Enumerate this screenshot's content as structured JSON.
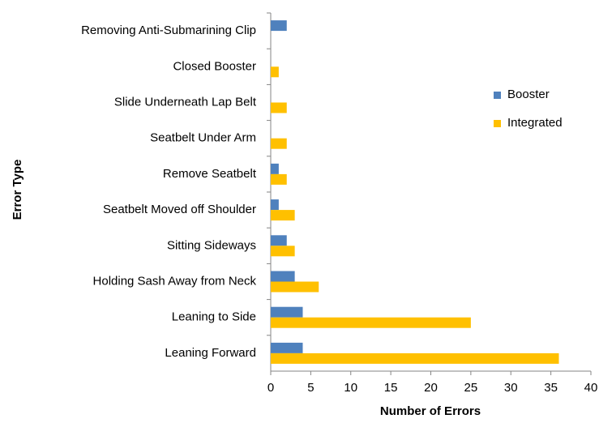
{
  "chart_data": {
    "type": "barh",
    "xlabel": "Number of Errors",
    "ylabel": "Error Type",
    "categories": [
      "Removing Anti-Submarining Clip",
      "Closed Booster",
      "Slide Underneath Lap Belt",
      "Seatbelt Under Arm",
      "Remove Seatbelt",
      "Seatbelt Moved off Shoulder",
      "Sitting Sideways",
      "Holding Sash Away from Neck",
      "Leaning to Side",
      "Leaning Forward"
    ],
    "series": [
      {
        "name": "Booster",
        "color": "#4f81bd",
        "values": [
          2,
          0,
          0,
          0,
          1,
          1,
          2,
          3,
          4,
          4
        ]
      },
      {
        "name": "Integrated",
        "color": "#ffc000",
        "values": [
          0,
          1,
          2,
          2,
          2,
          3,
          3,
          6,
          25,
          36
        ]
      }
    ],
    "xlim": [
      0,
      40
    ],
    "xticks": [
      0,
      5,
      10,
      15,
      20,
      25,
      30,
      35,
      40
    ],
    "legend": "right",
    "grid": false
  }
}
